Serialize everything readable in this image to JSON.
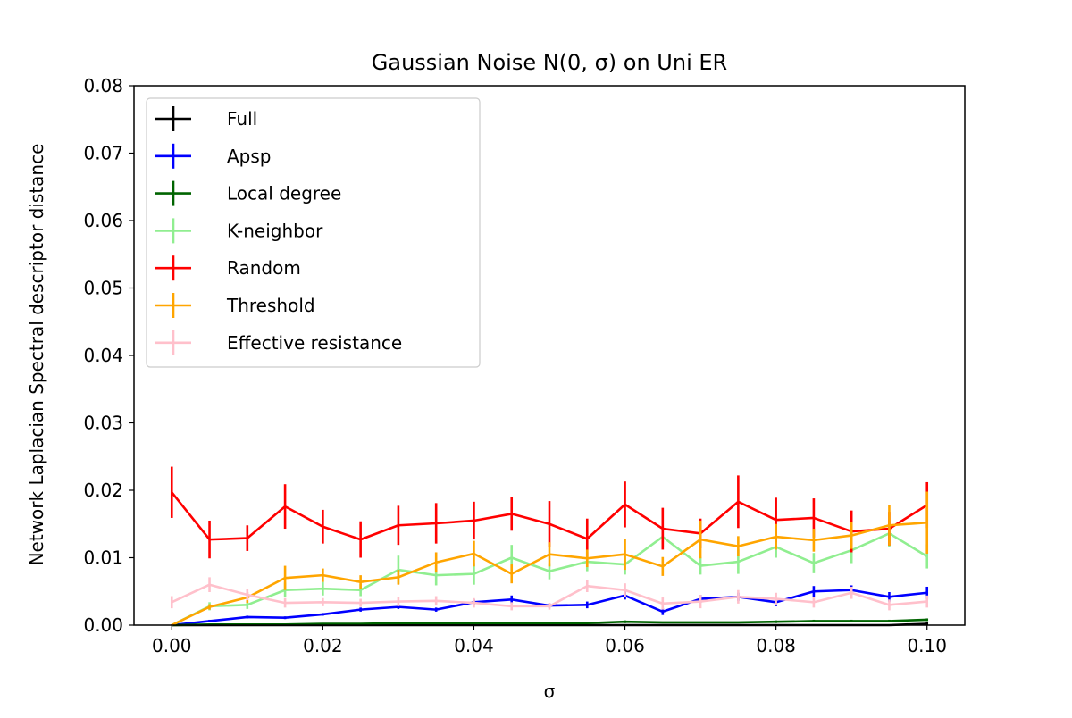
{
  "chart_data": {
    "type": "line",
    "title": "Gaussian Noise N(0, σ) on Uni ER",
    "xlabel": "σ",
    "ylabel": "Network Laplacian Spectral descriptor distance",
    "xlim": [
      -0.005,
      0.105
    ],
    "ylim": [
      0,
      0.08
    ],
    "xticks": [
      0.0,
      0.02,
      0.04,
      0.06,
      0.08,
      0.1
    ],
    "xtick_labels": [
      "0.00",
      "0.02",
      "0.04",
      "0.06",
      "0.08",
      "0.10"
    ],
    "yticks": [
      0.0,
      0.01,
      0.02,
      0.03,
      0.04,
      0.05,
      0.06,
      0.07,
      0.08
    ],
    "ytick_labels": [
      "0.00",
      "0.01",
      "0.02",
      "0.03",
      "0.04",
      "0.05",
      "0.06",
      "0.07",
      "0.08"
    ],
    "grid": false,
    "legend_position": "top-left",
    "x": [
      0.0,
      0.005,
      0.01,
      0.015,
      0.02,
      0.025,
      0.03,
      0.035,
      0.04,
      0.045,
      0.05,
      0.055,
      0.06,
      0.065,
      0.07,
      0.075,
      0.08,
      0.085,
      0.09,
      0.095,
      0.1
    ],
    "series": [
      {
        "name": "Full",
        "color": "#000000",
        "values": [
          0,
          0,
          0,
          0,
          0,
          0,
          0,
          0,
          0,
          0,
          0,
          0,
          0,
          0,
          0,
          0,
          0,
          0,
          0,
          0,
          0.0002
        ],
        "errors": [
          0,
          0,
          0,
          0,
          0,
          0,
          0,
          0,
          0,
          0,
          0,
          0,
          0,
          0,
          0,
          0,
          0,
          0,
          0,
          0,
          0.0002
        ]
      },
      {
        "name": "Apsp",
        "color": "#0000ff",
        "values": [
          0.0,
          0.0006,
          0.0012,
          0.0011,
          0.0016,
          0.0023,
          0.0027,
          0.0023,
          0.0034,
          0.0038,
          0.0029,
          0.003,
          0.0044,
          0.002,
          0.0039,
          0.0042,
          0.0034,
          0.005,
          0.0052,
          0.0042,
          0.0048
        ],
        "errors": [
          0.0001,
          0.0002,
          0.0002,
          0.0002,
          0.0002,
          0.0003,
          0.0003,
          0.0003,
          0.0004,
          0.0006,
          0.0003,
          0.0005,
          0.0006,
          0.0005,
          0.0006,
          0.0006,
          0.0006,
          0.0008,
          0.0007,
          0.0007,
          0.0009
        ]
      },
      {
        "name": "Local degree",
        "color": "#006400",
        "values": [
          0.0,
          0.0001,
          0.0001,
          0.0001,
          0.0002,
          0.0002,
          0.0003,
          0.0003,
          0.0003,
          0.0003,
          0.0003,
          0.0003,
          0.0005,
          0.0004,
          0.0004,
          0.0004,
          0.0005,
          0.0006,
          0.0006,
          0.0006,
          0.0008
        ],
        "errors": [
          0.0,
          0.0001,
          0.0001,
          0.0001,
          0.0001,
          0.0001,
          0.0001,
          0.0001,
          0.0001,
          0.0001,
          0.0001,
          0.0001,
          0.0002,
          0.0001,
          0.0001,
          0.0001,
          0.0002,
          0.0002,
          0.0002,
          0.0002,
          0.0002
        ]
      },
      {
        "name": "K-neighbor",
        "color": "#90ee90",
        "values": [
          0.0,
          0.0028,
          0.003,
          0.0052,
          0.0054,
          0.0052,
          0.0082,
          0.0074,
          0.0076,
          0.01,
          0.008,
          0.0094,
          0.009,
          0.0131,
          0.0088,
          0.0094,
          0.0116,
          0.0092,
          0.0111,
          0.0136,
          0.0102
        ],
        "errors": [
          0.0001,
          0.0006,
          0.0006,
          0.0011,
          0.001,
          0.0009,
          0.0021,
          0.0015,
          0.0016,
          0.0019,
          0.0012,
          0.0014,
          0.0015,
          0.0015,
          0.0013,
          0.0018,
          0.0016,
          0.0015,
          0.0019,
          0.002,
          0.0018
        ]
      },
      {
        "name": "Random",
        "color": "#ff0000",
        "values": [
          0.0197,
          0.0127,
          0.0129,
          0.0176,
          0.0146,
          0.0127,
          0.0148,
          0.0151,
          0.0155,
          0.0165,
          0.015,
          0.0128,
          0.0179,
          0.0143,
          0.0136,
          0.0183,
          0.0156,
          0.0159,
          0.0139,
          0.0143,
          0.0178
        ],
        "errors": [
          0.0038,
          0.0028,
          0.0019,
          0.0033,
          0.0025,
          0.0027,
          0.0029,
          0.003,
          0.0028,
          0.0025,
          0.0034,
          0.003,
          0.0034,
          0.0031,
          0.0022,
          0.0039,
          0.0033,
          0.0029,
          0.0031,
          0.0025,
          0.0034
        ]
      },
      {
        "name": "Threshold",
        "color": "#ffa500",
        "values": [
          0.0,
          0.0027,
          0.0041,
          0.007,
          0.0074,
          0.0064,
          0.0071,
          0.0093,
          0.0106,
          0.0076,
          0.0105,
          0.0099,
          0.0105,
          0.0087,
          0.0127,
          0.0117,
          0.0131,
          0.0126,
          0.0133,
          0.0148,
          0.0152
        ],
        "errors": [
          0.0001,
          0.0004,
          0.0008,
          0.0018,
          0.001,
          0.001,
          0.0011,
          0.0015,
          0.0019,
          0.0014,
          0.0018,
          0.0013,
          0.0023,
          0.0014,
          0.0028,
          0.0015,
          0.0019,
          0.0017,
          0.002,
          0.003,
          0.0046
        ]
      },
      {
        "name": "Effective resistance",
        "color": "#ffc0cb",
        "values": [
          0.0034,
          0.006,
          0.0045,
          0.0033,
          0.0034,
          0.0033,
          0.0035,
          0.0036,
          0.0033,
          0.0028,
          0.0028,
          0.0058,
          0.0052,
          0.0032,
          0.0035,
          0.0042,
          0.0039,
          0.0034,
          0.0048,
          0.003,
          0.0035
        ],
        "errors": [
          0.0009,
          0.0011,
          0.0008,
          0.0007,
          0.0006,
          0.0006,
          0.0007,
          0.0007,
          0.0007,
          0.0006,
          0.0005,
          0.0009,
          0.001,
          0.0009,
          0.001,
          0.001,
          0.0009,
          0.0008,
          0.0009,
          0.0008,
          0.0009
        ]
      }
    ]
  }
}
